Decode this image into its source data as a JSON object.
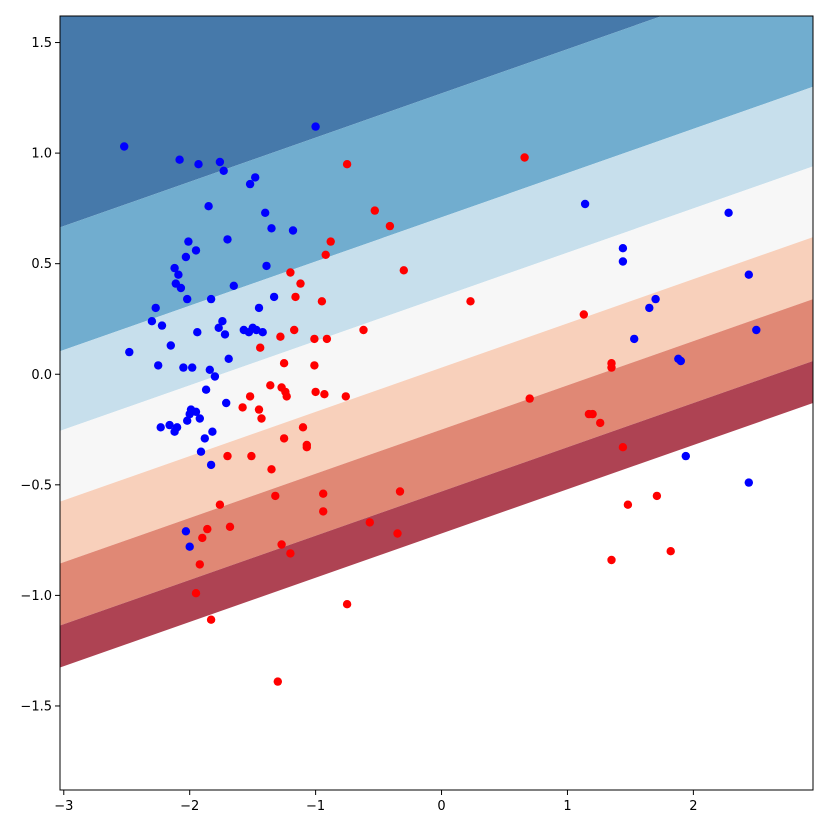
{
  "chart_data": {
    "type": "scatter",
    "title": "",
    "xlabel": "",
    "ylabel": "",
    "xlim": [
      -3.03,
      2.95
    ],
    "ylim": [
      -1.88,
      1.62
    ],
    "xticks": [
      -3,
      -2,
      -1,
      0,
      1,
      2
    ],
    "yticks": [
      -1.5,
      -1.0,
      -0.5,
      0.0,
      0.5,
      1.0,
      1.5
    ],
    "xtick_labels": [
      "−3",
      "−2",
      "−1",
      "0",
      "1",
      "2"
    ],
    "ytick_labels": [
      "−1.5",
      "−1.0",
      "−0.5",
      "0.0",
      "0.5",
      "1.0",
      "1.5"
    ],
    "grid": false,
    "legend": "none",
    "decision_regions": {
      "type": "filled_contour",
      "direction_slope_dy_dx": 0.2,
      "boundary_intercepts_at_x0": [
        1.27,
        0.71,
        0.35,
        0.03,
        -0.25,
        -0.53,
        -0.72
      ],
      "region_colors": [
        "#4679aa",
        "#71adcf",
        "#c7dfec",
        "#f7f7f7",
        "#f8d0bb",
        "#e08875",
        "#ae4353"
      ]
    },
    "series": [
      {
        "class": "blue",
        "color": "#0000ff",
        "x": [
          -2.52,
          -2.08,
          -1.93,
          -1.76,
          -1.73,
          -1.52,
          -1.48,
          -1.85,
          -1.4,
          -1.35,
          -1.18,
          -2.01,
          -1.95,
          -2.03,
          -2.12,
          -2.09,
          -2.11,
          -2.07,
          -2.02,
          -1.7,
          -1.65,
          -1.39,
          -1.45,
          -1.33,
          -2.27,
          -2.22,
          -2.3,
          -1.83,
          -1.94,
          -1.77,
          -1.74,
          -1.72,
          -1.57,
          -1.53,
          -1.5,
          -1.47,
          -1.42,
          -2.15,
          -2.48,
          -2.25,
          -2.05,
          -1.98,
          -1.84,
          -1.8,
          -1.69,
          -1.71,
          -1.87,
          -1.95,
          -1.92,
          -1.88,
          -1.82,
          -1.99,
          -2.0,
          -2.16,
          -2.12,
          -2.23,
          -2.1,
          -2.02,
          -1.91,
          -1.83,
          -2.03,
          -2.0,
          -1.0,
          1.14,
          2.28,
          1.44,
          1.44,
          1.53,
          1.65,
          1.7,
          1.88,
          1.9,
          2.44,
          2.5,
          1.94,
          2.44
        ],
        "y": [
          1.03,
          0.97,
          0.95,
          0.96,
          0.92,
          0.86,
          0.89,
          0.76,
          0.73,
          0.66,
          0.65,
          0.6,
          0.56,
          0.53,
          0.48,
          0.45,
          0.41,
          0.39,
          0.34,
          0.61,
          0.4,
          0.49,
          0.3,
          0.35,
          0.3,
          0.22,
          0.24,
          0.34,
          0.19,
          0.21,
          0.24,
          0.18,
          0.2,
          0.19,
          0.21,
          0.2,
          0.19,
          0.13,
          0.1,
          0.04,
          0.03,
          0.03,
          0.02,
          -0.01,
          0.07,
          -0.13,
          -0.07,
          -0.17,
          -0.2,
          -0.29,
          -0.26,
          -0.16,
          -0.18,
          -0.23,
          -0.26,
          -0.24,
          -0.24,
          -0.21,
          -0.35,
          -0.41,
          -0.71,
          -0.78,
          1.12,
          0.77,
          0.73,
          0.57,
          0.51,
          0.16,
          0.3,
          0.34,
          0.07,
          0.06,
          0.45,
          0.2,
          -0.37,
          -0.49
        ]
      },
      {
        "class": "red",
        "color": "#ff0000",
        "x": [
          -0.75,
          0.66,
          -0.53,
          -0.41,
          -0.88,
          -0.92,
          -0.3,
          -1.2,
          -1.12,
          -1.16,
          -0.95,
          0.23,
          -0.62,
          -1.17,
          -1.01,
          -0.91,
          -1.28,
          -1.44,
          -1.25,
          -1.01,
          -1.0,
          -1.27,
          -1.36,
          -1.24,
          -1.23,
          -1.52,
          -0.93,
          -0.76,
          -1.58,
          -1.45,
          -1.43,
          -1.1,
          -1.25,
          -1.07,
          -1.07,
          -1.7,
          -1.51,
          -1.35,
          -1.32,
          -0.94,
          -0.94,
          -0.57,
          -0.33,
          -0.35,
          -1.76,
          -1.86,
          -1.68,
          -1.9,
          -1.27,
          -1.2,
          -1.92,
          -1.95,
          -0.75,
          -1.83,
          -1.3,
          0.7,
          1.13,
          1.17,
          1.2,
          1.26,
          1.35,
          1.35,
          1.44,
          1.48,
          1.71,
          1.82,
          1.35
        ],
        "y": [
          0.95,
          0.98,
          0.74,
          0.67,
          0.6,
          0.54,
          0.47,
          0.46,
          0.41,
          0.35,
          0.33,
          0.33,
          0.2,
          0.2,
          0.16,
          0.16,
          0.17,
          0.12,
          0.05,
          0.04,
          -0.08,
          -0.06,
          -0.05,
          -0.08,
          -0.1,
          -0.1,
          -0.09,
          -0.1,
          -0.15,
          -0.16,
          -0.2,
          -0.24,
          -0.29,
          -0.32,
          -0.33,
          -0.37,
          -0.37,
          -0.43,
          -0.55,
          -0.54,
          -0.62,
          -0.67,
          -0.53,
          -0.72,
          -0.59,
          -0.7,
          -0.69,
          -0.74,
          -0.77,
          -0.81,
          -0.86,
          -0.99,
          -1.04,
          -1.11,
          -1.39,
          -0.11,
          0.27,
          -0.18,
          -0.18,
          -0.22,
          0.05,
          0.03,
          -0.33,
          -0.59,
          -0.55,
          -0.8,
          -0.84
        ]
      }
    ]
  }
}
